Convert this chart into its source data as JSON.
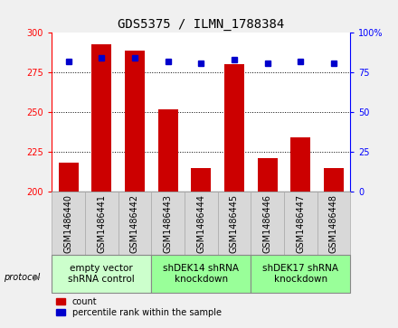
{
  "title": "GDS5375 / ILMN_1788384",
  "samples": [
    "GSM1486440",
    "GSM1486441",
    "GSM1486442",
    "GSM1486443",
    "GSM1486444",
    "GSM1486445",
    "GSM1486446",
    "GSM1486447",
    "GSM1486448"
  ],
  "bar_values": [
    218,
    293,
    289,
    252,
    215,
    280,
    221,
    234,
    215
  ],
  "percentile_values": [
    82,
    84,
    84,
    82,
    81,
    83,
    81,
    82,
    81
  ],
  "bar_color": "#cc0000",
  "dot_color": "#0000cc",
  "ylim_left": [
    200,
    300
  ],
  "ylim_right": [
    0,
    100
  ],
  "yticks_left": [
    200,
    225,
    250,
    275,
    300
  ],
  "yticks_right": [
    0,
    25,
    50,
    75,
    100
  ],
  "groups": [
    {
      "label": "empty vector\nshRNA control",
      "start": 0,
      "end": 3,
      "color": "#ccffcc"
    },
    {
      "label": "shDEK14 shRNA\nknockdown",
      "start": 3,
      "end": 6,
      "color": "#99ff99"
    },
    {
      "label": "shDEK17 shRNA\nknockdown",
      "start": 6,
      "end": 9,
      "color": "#99ff99"
    }
  ],
  "protocol_label": "protocol",
  "legend_count_label": "count",
  "legend_percentile_label": "percentile rank within the sample",
  "background_color": "#f0f0f0",
  "plot_bg": "#ffffff",
  "group_label_fontsize": 7.5,
  "tick_label_fontsize": 7,
  "title_fontsize": 10
}
